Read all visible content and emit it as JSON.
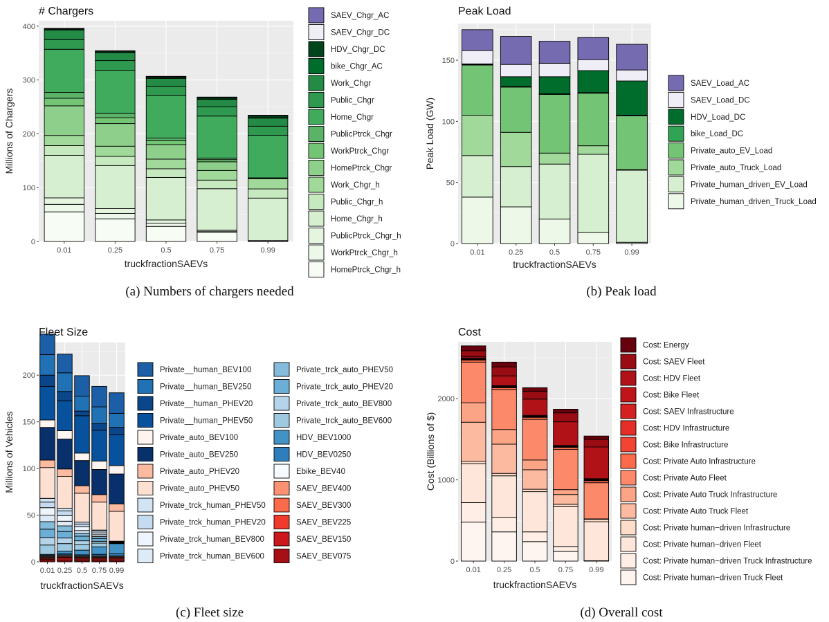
{
  "colors": {
    "panel_bg": "#ebebeb",
    "grid": "#ffffff",
    "bar_stroke": "#000000"
  },
  "chart_data": [
    {
      "id": "chargers",
      "type": "bar",
      "stacked": true,
      "title": "# Chargers",
      "xlabel": "truckfractionSAEVs",
      "ylabel": "Millions of Chargers",
      "caption": "(a) Numbers of chargers needed",
      "categories": [
        "0.01",
        "0.25",
        "0.5",
        "0.75",
        "0.99"
      ],
      "ylim": [
        0,
        410
      ],
      "yticks": [
        0,
        100,
        200,
        300,
        400
      ],
      "grid": true,
      "legend_position": "right",
      "series": [
        {
          "name": "HomePtrck_Chgr_h",
          "color": "#f7fcf5",
          "values": [
            55,
            42,
            28,
            16,
            1
          ]
        },
        {
          "name": "WorkPtrck_Chgr_h",
          "color": "#eef8ea",
          "values": [
            14,
            10,
            6,
            3,
            0.3
          ]
        },
        {
          "name": "PublicPtrck_Chgr_h",
          "color": "#e5f5e0",
          "values": [
            12,
            9,
            6,
            2,
            0.3
          ]
        },
        {
          "name": "Home_Chgr_h",
          "color": "#d6efd0",
          "values": [
            79,
            80,
            79,
            77,
            79
          ]
        },
        {
          "name": "Public_Chgr_h",
          "color": "#c7e9c0",
          "values": [
            18,
            17,
            16,
            16,
            17
          ]
        },
        {
          "name": "Work_Chgr_h",
          "color": "#a1d99b",
          "values": [
            19,
            19,
            18,
            18,
            19
          ]
        },
        {
          "name": "HomePtrck_Chgr",
          "color": "#8ed08b",
          "values": [
            55,
            42,
            27,
            16,
            1
          ]
        },
        {
          "name": "WorkPtrck_Chgr",
          "color": "#74c476",
          "values": [
            14,
            11,
            7,
            4,
            0.3
          ]
        },
        {
          "name": "PublicPtrck_Chgr",
          "color": "#5bb368",
          "values": [
            11,
            8,
            5,
            3,
            0.3
          ]
        },
        {
          "name": "Home_Chgr",
          "color": "#41ab5d",
          "values": [
            80,
            80,
            79,
            78,
            79
          ]
        },
        {
          "name": "Public_Chgr",
          "color": "#2f9950",
          "values": [
            18,
            18,
            17,
            17,
            17
          ]
        },
        {
          "name": "Work_Chgr",
          "color": "#238b45",
          "values": [
            18,
            15,
            15,
            14,
            15
          ]
        },
        {
          "name": "bike_Chgr_AC",
          "color": "#006d2c",
          "values": [
            0.5,
            0.5,
            0.5,
            0.5,
            0.5
          ]
        },
        {
          "name": "HDV_Chgr_DC",
          "color": "#00441b",
          "values": [
            1.5,
            2,
            2.5,
            3,
            4
          ]
        },
        {
          "name": "SAEV_Chgr_DC",
          "color": "#efedf5",
          "values": [
            0.5,
            0.5,
            0.5,
            0.5,
            0.5
          ]
        },
        {
          "name": "SAEV_Chgr_AC",
          "color": "#756bb1",
          "values": [
            0.3,
            0.3,
            0.3,
            0.3,
            0.3
          ]
        }
      ]
    },
    {
      "id": "peakload",
      "type": "bar",
      "stacked": true,
      "title": "Peak Load",
      "xlabel": "truckfractionSAEVs",
      "ylabel": "Peak Load (GW)",
      "caption": "(b) Peak load",
      "categories": [
        "0.01",
        "0.25",
        "0.5",
        "0.75",
        "0.99"
      ],
      "ylim": [
        0,
        180
      ],
      "yticks": [
        0,
        50,
        100,
        150
      ],
      "grid": true,
      "legend_position": "right",
      "series": [
        {
          "name": "Private_human_driven_Truck_Load",
          "color": "#edf8e9",
          "values": [
            38,
            30,
            20,
            9,
            1
          ]
        },
        {
          "name": "Private_human_driven_EV_Load",
          "color": "#d6efd0",
          "values": [
            34,
            33,
            45,
            64,
            59
          ]
        },
        {
          "name": "Private_auto_Truck_Load",
          "color": "#a1d99b",
          "values": [
            33,
            28,
            9,
            7,
            0.5
          ]
        },
        {
          "name": "Private_auto_EV_Load",
          "color": "#74c476",
          "values": [
            41,
            37,
            48,
            43,
            44
          ]
        },
        {
          "name": "bike_Load_DC",
          "color": "#31a354",
          "values": [
            0.5,
            0.5,
            0.5,
            0.5,
            0.5
          ]
        },
        {
          "name": "HDV_Load_DC",
          "color": "#006d2c",
          "values": [
            0.5,
            8,
            14,
            18,
            28
          ]
        },
        {
          "name": "SAEV_Load_DC",
          "color": "#efedf5",
          "values": [
            11,
            10,
            11,
            9,
            9
          ]
        },
        {
          "name": "SAEV_Load_AC",
          "color": "#756bb1",
          "values": [
            17,
            23,
            18,
            18,
            21
          ]
        }
      ]
    },
    {
      "id": "fleet",
      "type": "bar",
      "stacked": true,
      "title": "Fleet Size",
      "xlabel": "truckfractionSAEVs",
      "ylabel": "Millions of Vehicles",
      "caption": "(c) Fleet size",
      "categories": [
        "0.01",
        "0.25",
        "0.5",
        "0.75",
        "0.99"
      ],
      "ylim": [
        0,
        235
      ],
      "yticks": [
        0,
        50,
        100,
        150,
        200
      ],
      "grid": true,
      "legend_position": "right",
      "series": [
        {
          "name": "SAEV_BEV075",
          "color": "#a50f15",
          "values": [
            2,
            2,
            1,
            1,
            1
          ]
        },
        {
          "name": "SAEV_BEV150",
          "color": "#cb181d",
          "values": [
            1,
            2,
            2,
            2,
            2
          ]
        },
        {
          "name": "SAEV_BEV225",
          "color": "#ef3b2c",
          "values": [
            1,
            1,
            1,
            1,
            1
          ]
        },
        {
          "name": "SAEV_BEV300",
          "color": "#fb6a4a",
          "values": [
            1,
            1,
            1,
            1,
            1
          ]
        },
        {
          "name": "SAEV_BEV400",
          "color": "#fc9272",
          "values": [
            0.5,
            0.5,
            0.5,
            0.5,
            0.5
          ]
        },
        {
          "name": "Ebike_BEV40",
          "color": "#f7fbff",
          "values": [
            1,
            1,
            1,
            1,
            1
          ]
        },
        {
          "name": "HDV_BEV0250",
          "color": "#2e7ebc",
          "values": [
            0.5,
            1,
            1,
            1.5,
            2
          ]
        },
        {
          "name": "HDV_BEV1000",
          "color": "#4292c6",
          "values": [
            1,
            3,
            5,
            8,
            11
          ]
        },
        {
          "name": "Private_trck_auto_BEV600",
          "color": "#9ecae1",
          "values": [
            10,
            8,
            6,
            4,
            0.5
          ]
        },
        {
          "name": "Private_trck_auto_BEV800",
          "color": "#b5d4e9",
          "values": [
            8,
            6,
            4,
            2,
            0.3
          ]
        },
        {
          "name": "Private_trck_auto_PHEV20",
          "color": "#6baed6",
          "values": [
            9,
            7,
            5,
            3,
            0.3
          ]
        },
        {
          "name": "Private_trck_auto_PHEV50",
          "color": "#85bcdb",
          "values": [
            8,
            6,
            3,
            2,
            0.3
          ]
        },
        {
          "name": "Private_trck_human_BEV600",
          "color": "#deebf7",
          "values": [
            7,
            5,
            3,
            2,
            0.3
          ]
        },
        {
          "name": "Private_trck_human_BEV800",
          "color": "#eef5fc",
          "values": [
            8,
            6,
            4,
            2,
            0.3
          ]
        },
        {
          "name": "Private_trck_human_PHEV20",
          "color": "#c6dbef",
          "values": [
            6,
            5,
            3,
            2,
            0.3
          ]
        },
        {
          "name": "Private_trck_human_PHEV50",
          "color": "#d2e3f3",
          "values": [
            4,
            3,
            2,
            1,
            0.3
          ]
        },
        {
          "name": "Private_auto_PHEV50",
          "color": "#fee0d2",
          "values": [
            33,
            34,
            31,
            30,
            32
          ]
        },
        {
          "name": "Private_auto_PHEV20",
          "color": "#fcbba1",
          "values": [
            8,
            8,
            8,
            8,
            8
          ]
        },
        {
          "name": "Private_auto_BEV250",
          "color": "#08306b",
          "values": [
            35,
            32,
            27,
            27,
            32
          ]
        },
        {
          "name": "Private_auto_BEV100",
          "color": "#fff5f0",
          "values": [
            8,
            9,
            8,
            9,
            9
          ]
        },
        {
          "name": "Private__human_PHEV50",
          "color": "#08519c",
          "values": [
            36,
            32,
            40,
            33,
            33
          ]
        },
        {
          "name": "Private__human_PHEV20",
          "color": "#0b468a",
          "values": [
            12,
            10,
            5,
            7,
            8
          ]
        },
        {
          "name": "Private__human_BEV250",
          "color": "#2171b5",
          "values": [
            22,
            20,
            16,
            18,
            15
          ]
        },
        {
          "name": "Private__human_BEV100",
          "color": "#1c5fa6",
          "values": [
            22,
            20,
            22,
            22,
            22
          ]
        }
      ]
    },
    {
      "id": "cost",
      "type": "bar",
      "stacked": true,
      "title": "Cost",
      "xlabel": "truckfractionSAEVs",
      "ylabel": "Cost (Billions of $)",
      "caption": "(d) Overall cost",
      "categories": [
        "0.01",
        "0.25",
        "0.5",
        "0.75",
        "0.99"
      ],
      "ylim": [
        0,
        2700
      ],
      "yticks": [
        0,
        1000,
        2000
      ],
      "grid": true,
      "legend_position": "right",
      "series": [
        {
          "name": "Cost: Private human−driven Truck Fleet",
          "color": "#fff5f0",
          "values": [
            480,
            360,
            240,
            120,
            3
          ]
        },
        {
          "name": "Cost: Private human−driven Truck Infrastructure",
          "color": "#feeee6",
          "values": [
            240,
            180,
            120,
            60,
            2
          ]
        },
        {
          "name": "Cost: Private human−driven Fleet",
          "color": "#fee6da",
          "values": [
            480,
            510,
            495,
            490,
            480
          ]
        },
        {
          "name": "Cost: Private human−driven Infrastructure",
          "color": "#fddcc9",
          "values": [
            30,
            30,
            30,
            30,
            30
          ]
        },
        {
          "name": "Cost: Private Auto Truck Fleet",
          "color": "#fcbba1",
          "values": [
            480,
            360,
            240,
            120,
            3
          ]
        },
        {
          "name": "Cost: Private Auto Truck Infrastructure",
          "color": "#fca486",
          "values": [
            240,
            180,
            120,
            60,
            2
          ]
        },
        {
          "name": "Cost: Private Auto Fleet",
          "color": "#fc8a6a",
          "values": [
            500,
            490,
            500,
            495,
            445
          ]
        },
        {
          "name": "Cost: Private Auto Infrastructure",
          "color": "#fb6a4a",
          "values": [
            25,
            25,
            25,
            25,
            25
          ]
        },
        {
          "name": "Cost: Bike Infrastructure",
          "color": "#f14432",
          "values": [
            5,
            5,
            5,
            5,
            5
          ]
        },
        {
          "name": "Cost: HDV Infrastructure",
          "color": "#e32f27",
          "values": [
            5,
            5,
            5,
            5,
            5
          ]
        },
        {
          "name": "Cost: SAEV Infrastructure",
          "color": "#d42020",
          "values": [
            5,
            5,
            5,
            5,
            5
          ]
        },
        {
          "name": "Cost: Bike Fleet",
          "color": "#c0141b",
          "values": [
            10,
            10,
            10,
            10,
            10
          ]
        },
        {
          "name": "Cost: HDV Fleet",
          "color": "#b11218",
          "values": [
            20,
            120,
            200,
            290,
            390
          ]
        },
        {
          "name": "Cost: SAEV Fleet",
          "color": "#9a0c14",
          "values": [
            70,
            110,
            95,
            110,
            95
          ]
        },
        {
          "name": "Cost: Energy",
          "color": "#67000d",
          "values": [
            60,
            60,
            45,
            45,
            40
          ]
        }
      ]
    }
  ]
}
